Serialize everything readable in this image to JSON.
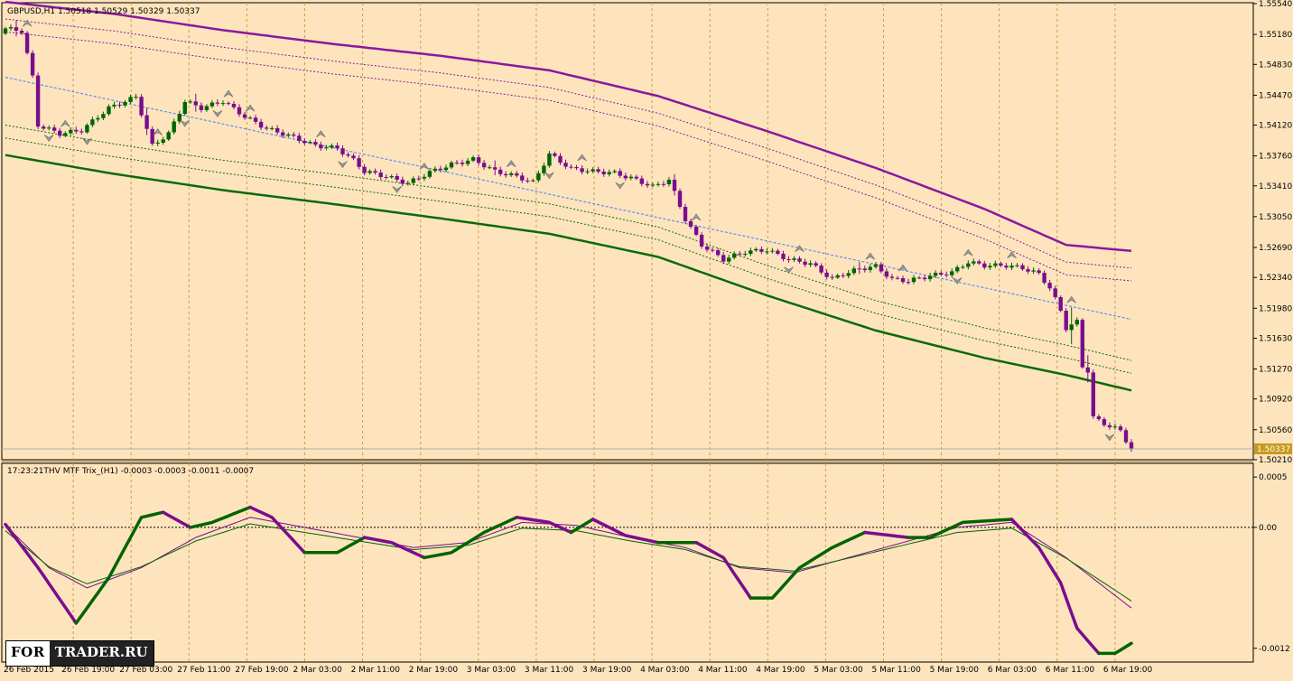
{
  "header": {
    "symbol_line": "GBPUSD,H1  1.50518 1.50529 1.50329 1.50337",
    "indicator_line": "17:23:21THV MTF Trix_(H1) -0.0003 -0.0003 -0.0011 -0.0007",
    "last_price": "1.50337"
  },
  "logo": {
    "part1": "FOR",
    "part2": "TRADER.RU"
  },
  "colors": {
    "background": "#fde4bd",
    "bull": "#006400",
    "bear": "#7a0d8e",
    "upper_band": "#8a189e",
    "lower_band": "#0b6a0b",
    "mid_line": "#5b8ff0",
    "grid": "#c8a04a"
  },
  "chart_data": [
    {
      "type": "candlestick",
      "symbol": "GBPUSD",
      "timeframe": "H1",
      "ylim": [
        1.5021,
        1.5554
      ],
      "y_ticks": [
        "1.55540",
        "1.55180",
        "1.54830",
        "1.54470",
        "1.54120",
        "1.53760",
        "1.53410",
        "1.53050",
        "1.52690",
        "1.52340",
        "1.51980",
        "1.51630",
        "1.51270",
        "1.50920",
        "1.50560",
        "1.50210"
      ],
      "x_ticks": [
        "26 Feb 2015",
        "26 Feb 19:00",
        "27 Feb 03:00",
        "27 Feb 11:00",
        "27 Feb 19:00",
        "2 Mar 03:00",
        "2 Mar 11:00",
        "2 Mar 19:00",
        "3 Mar 03:00",
        "3 Mar 11:00",
        "3 Mar 19:00",
        "4 Mar 03:00",
        "4 Mar 11:00",
        "4 Mar 19:00",
        "5 Mar 03:00",
        "5 Mar 11:00",
        "5 Mar 19:00",
        "6 Mar 03:00",
        "6 Mar 11:00",
        "6 Mar 19:00"
      ],
      "close_anchors": [
        [
          0,
          1.5525
        ],
        [
          3,
          1.5522
        ],
        [
          5,
          1.5468
        ],
        [
          6,
          1.5412
        ],
        [
          10,
          1.5402
        ],
        [
          14,
          1.5406
        ],
        [
          19,
          1.5432
        ],
        [
          24,
          1.5445
        ],
        [
          27,
          1.5388
        ],
        [
          30,
          1.5402
        ],
        [
          33,
          1.544
        ],
        [
          36,
          1.5432
        ],
        [
          40,
          1.544
        ],
        [
          44,
          1.5422
        ],
        [
          48,
          1.5408
        ],
        [
          52,
          1.54
        ],
        [
          57,
          1.5388
        ],
        [
          61,
          1.5385
        ],
        [
          64,
          1.5371
        ],
        [
          66,
          1.5358
        ],
        [
          70,
          1.5352
        ],
        [
          74,
          1.5344
        ],
        [
          78,
          1.5357
        ],
        [
          82,
          1.5366
        ],
        [
          86,
          1.5372
        ],
        [
          90,
          1.5358
        ],
        [
          94,
          1.5352
        ],
        [
          97,
          1.5345
        ],
        [
          100,
          1.5378
        ],
        [
          104,
          1.5361
        ],
        [
          108,
          1.5358
        ],
        [
          112,
          1.5356
        ],
        [
          116,
          1.5348
        ],
        [
          119,
          1.534
        ],
        [
          122,
          1.5348
        ],
        [
          125,
          1.5302
        ],
        [
          128,
          1.5272
        ],
        [
          132,
          1.5255
        ],
        [
          136,
          1.5264
        ],
        [
          140,
          1.5266
        ],
        [
          144,
          1.5255
        ],
        [
          148,
          1.525
        ],
        [
          152,
          1.5232
        ],
        [
          154,
          1.5238
        ],
        [
          157,
          1.5244
        ],
        [
          160,
          1.5247
        ],
        [
          163,
          1.5232
        ],
        [
          166,
          1.523
        ],
        [
          170,
          1.5236
        ],
        [
          174,
          1.524
        ],
        [
          177,
          1.5252
        ],
        [
          180,
          1.5248
        ],
        [
          184,
          1.5248
        ],
        [
          187,
          1.5245
        ],
        [
          190,
          1.5238
        ],
        [
          192,
          1.5222
        ],
        [
          194,
          1.5195
        ],
        [
          195,
          1.5175
        ],
        [
          197,
          1.5182
        ],
        [
          198,
          1.513
        ],
        [
          199,
          1.5125
        ],
        [
          200,
          1.507
        ],
        [
          203,
          1.506
        ],
        [
          205,
          1.5055
        ],
        [
          207,
          1.5033
        ]
      ],
      "extra_range": [
        [
          2,
          0.0008
        ],
        [
          26,
          0.0012
        ],
        [
          35,
          0.001
        ],
        [
          90,
          0.001
        ],
        [
          123,
          0.0008
        ],
        [
          157,
          0.001
        ],
        [
          196,
          0.003
        ],
        [
          199,
          0.002
        ]
      ],
      "band_upper": [
        [
          0,
          1.5556
        ],
        [
          20,
          1.5542
        ],
        [
          40,
          1.5523
        ],
        [
          60,
          1.5507
        ],
        [
          80,
          1.5493
        ],
        [
          100,
          1.5476
        ],
        [
          120,
          1.5446
        ],
        [
          140,
          1.5405
        ],
        [
          160,
          1.5362
        ],
        [
          180,
          1.5314
        ],
        [
          195,
          1.5272
        ],
        [
          207,
          1.5265
        ]
      ],
      "band_lower": [
        [
          0,
          1.5377
        ],
        [
          20,
          1.5355
        ],
        [
          40,
          1.5336
        ],
        [
          60,
          1.532
        ],
        [
          80,
          1.5303
        ],
        [
          100,
          1.5285
        ],
        [
          120,
          1.5258
        ],
        [
          140,
          1.5213
        ],
        [
          160,
          1.5172
        ],
        [
          180,
          1.514
        ],
        [
          195,
          1.512
        ],
        [
          207,
          1.5102
        ]
      ],
      "mid_line": [
        [
          0,
          1.5468
        ],
        [
          207,
          1.5185
        ]
      ],
      "fractals_up": [
        4,
        11,
        28,
        41,
        45,
        58,
        77,
        93,
        106,
        127,
        146,
        159,
        165,
        177,
        185,
        196
      ],
      "fractals_down": [
        8,
        15,
        33,
        39,
        62,
        72,
        100,
        113,
        144,
        175,
        203
      ],
      "bands_inner_offsets": [
        0.002,
        0.0035
      ]
    },
    {
      "type": "line",
      "name": "THV MTF Trix_(H1)",
      "ylim": [
        -0.0013,
        0.0006
      ],
      "y_ticks": [
        "0.0005",
        "0.00",
        "-0.0012"
      ],
      "zero_level": 0,
      "trix_anchors": [
        [
          0,
          3e-05
        ],
        [
          6,
          -0.0004
        ],
        [
          13,
          -0.00095
        ],
        [
          19,
          -0.0005
        ],
        [
          25,
          0.0001
        ],
        [
          29,
          0.00015
        ],
        [
          34,
          0.0
        ],
        [
          38,
          5e-05
        ],
        [
          45,
          0.0002
        ],
        [
          49,
          0.0001
        ],
        [
          55,
          -0.00025
        ],
        [
          61,
          -0.00025
        ],
        [
          66,
          -0.0001
        ],
        [
          71,
          -0.00015
        ],
        [
          77,
          -0.0003
        ],
        [
          82,
          -0.00025
        ],
        [
          88,
          -5e-05
        ],
        [
          94,
          0.0001
        ],
        [
          100,
          5e-05
        ],
        [
          104,
          -5e-05
        ],
        [
          108,
          8e-05
        ],
        [
          114,
          -8e-05
        ],
        [
          120,
          -0.00015
        ],
        [
          127,
          -0.00015
        ],
        [
          132,
          -0.0003
        ],
        [
          137,
          -0.0007
        ],
        [
          141,
          -0.0007
        ],
        [
          146,
          -0.0004
        ],
        [
          152,
          -0.0002
        ],
        [
          158,
          -5e-05
        ],
        [
          166,
          -0.0001
        ],
        [
          170,
          -0.0001
        ],
        [
          176,
          5e-05
        ],
        [
          185,
          8e-05
        ],
        [
          190,
          -0.0002
        ],
        [
          194,
          -0.00055
        ],
        [
          197,
          -0.001
        ],
        [
          201,
          -0.00125
        ],
        [
          204,
          -0.00125
        ],
        [
          207,
          -0.00115
        ]
      ],
      "signal_anchors": [
        [
          0,
          2e-05
        ],
        [
          8,
          -0.0004
        ],
        [
          15,
          -0.0006
        ],
        [
          25,
          -0.0004
        ],
        [
          35,
          -0.0001
        ],
        [
          45,
          0.0001
        ],
        [
          55,
          0.0
        ],
        [
          65,
          -0.0001
        ],
        [
          75,
          -0.0002
        ],
        [
          85,
          -0.00015
        ],
        [
          95,
          5e-05
        ],
        [
          105,
          2e-05
        ],
        [
          115,
          -0.0001
        ],
        [
          125,
          -0.0002
        ],
        [
          135,
          -0.0004
        ],
        [
          145,
          -0.00045
        ],
        [
          155,
          -0.0003
        ],
        [
          165,
          -0.00015
        ],
        [
          175,
          -0.0
        ],
        [
          185,
          5e-05
        ],
        [
          195,
          -0.0003
        ],
        [
          207,
          -0.0008
        ]
      ]
    }
  ]
}
